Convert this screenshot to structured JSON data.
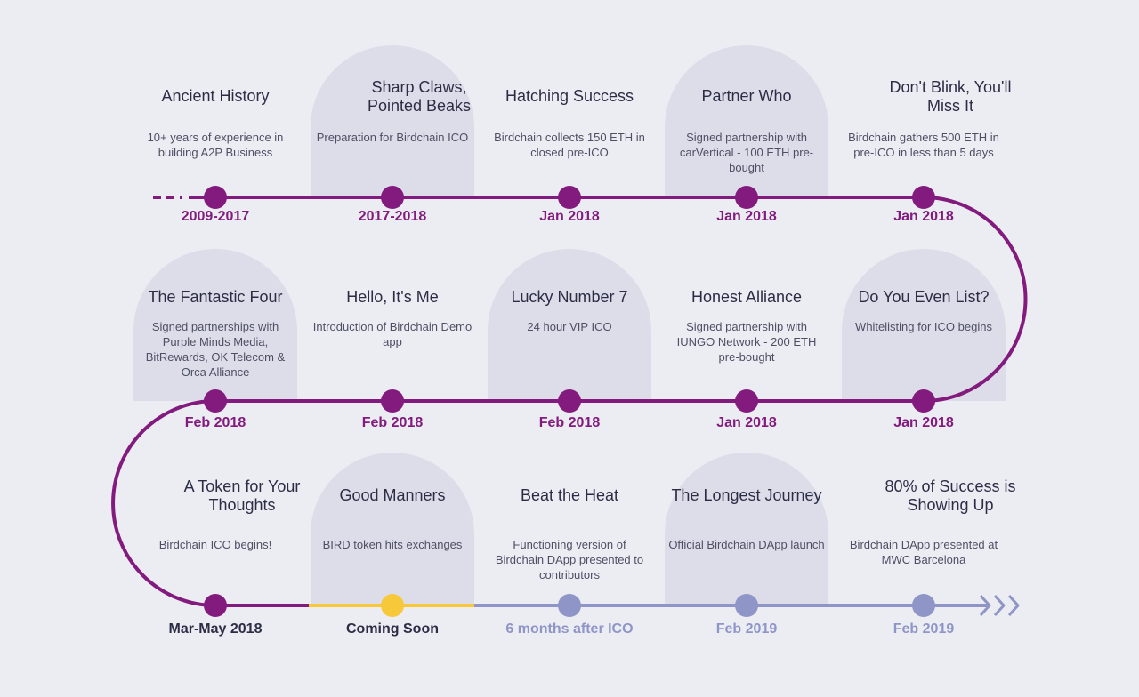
{
  "colors": {
    "background": "#ececf3",
    "arch": "#dddde9",
    "done": "#821b7d",
    "current": "#f7c93a",
    "future": "#8f96c7",
    "title": "#2b2d45",
    "text": "#4d5064"
  },
  "rows": [
    {
      "milestones": [
        {
          "title": "Ancient History",
          "desc": "10+ years of experience in building A2P Business",
          "date": "2009-2017",
          "status": "done",
          "arch": false
        },
        {
          "title": "Sharp Claws, Pointed Beaks",
          "desc": "Preparation for Birdchain ICO",
          "date": "2017-2018",
          "status": "done",
          "arch": true
        },
        {
          "title": "Hatching Success",
          "desc": "Birdchain collects 150 ETH in closed pre-ICO",
          "date": "Jan 2018",
          "status": "done",
          "arch": false
        },
        {
          "title": "Partner Who",
          "desc": "Signed partnership with carVertical - 100 ETH pre-bought",
          "date": "Jan 2018",
          "status": "done",
          "arch": true
        },
        {
          "title": "Don't Blink, You'll Miss It",
          "desc": "Birdchain gathers 500 ETH in pre-ICO in less than 5 days",
          "date": "Jan 2018",
          "status": "done",
          "arch": false
        }
      ]
    },
    {
      "milestones": [
        {
          "title": "The Fantastic Four",
          "desc": "Signed partnerships with Purple Minds Media, BitRewards, OK Telecom & Orca Alliance",
          "date": "Feb 2018",
          "status": "done",
          "arch": true
        },
        {
          "title": "Hello, It's Me",
          "desc": "Introduction of Birdchain Demo app",
          "date": "Feb 2018",
          "status": "done",
          "arch": false
        },
        {
          "title": "Lucky Number 7",
          "desc": "24 hour VIP ICO",
          "date": "Feb 2018",
          "status": "done",
          "arch": true
        },
        {
          "title": "Honest Alliance",
          "desc": "Signed partnership with IUNGO Network - 200 ETH pre-bought",
          "date": "Jan 2018",
          "status": "done",
          "arch": false
        },
        {
          "title": "Do You Even List?",
          "desc": "Whitelisting for ICO begins",
          "date": "Jan 2018",
          "status": "done",
          "arch": true
        }
      ]
    },
    {
      "milestones": [
        {
          "title": "A Token for Your Thoughts",
          "desc": "Birdchain ICO begins!",
          "date": "Mar-May 2018",
          "status": "done",
          "arch": false
        },
        {
          "title": "Good Manners",
          "desc": "BIRD token hits exchanges",
          "date": "Coming Soon",
          "status": "current",
          "arch": true
        },
        {
          "title": "Beat the Heat",
          "desc": "Functioning version of Birdchain DApp presented to contributors",
          "date": "6 months after ICO",
          "status": "future",
          "arch": false
        },
        {
          "title": "The Longest Journey",
          "desc": "Official Birdchain DApp launch",
          "date": "Feb 2019",
          "status": "future",
          "arch": true
        },
        {
          "title": "80% of Success is Showing Up",
          "desc": "Birdchain DApp presented at MWC Barcelona",
          "date": "Feb 2019",
          "status": "future",
          "arch": false
        }
      ]
    }
  ]
}
